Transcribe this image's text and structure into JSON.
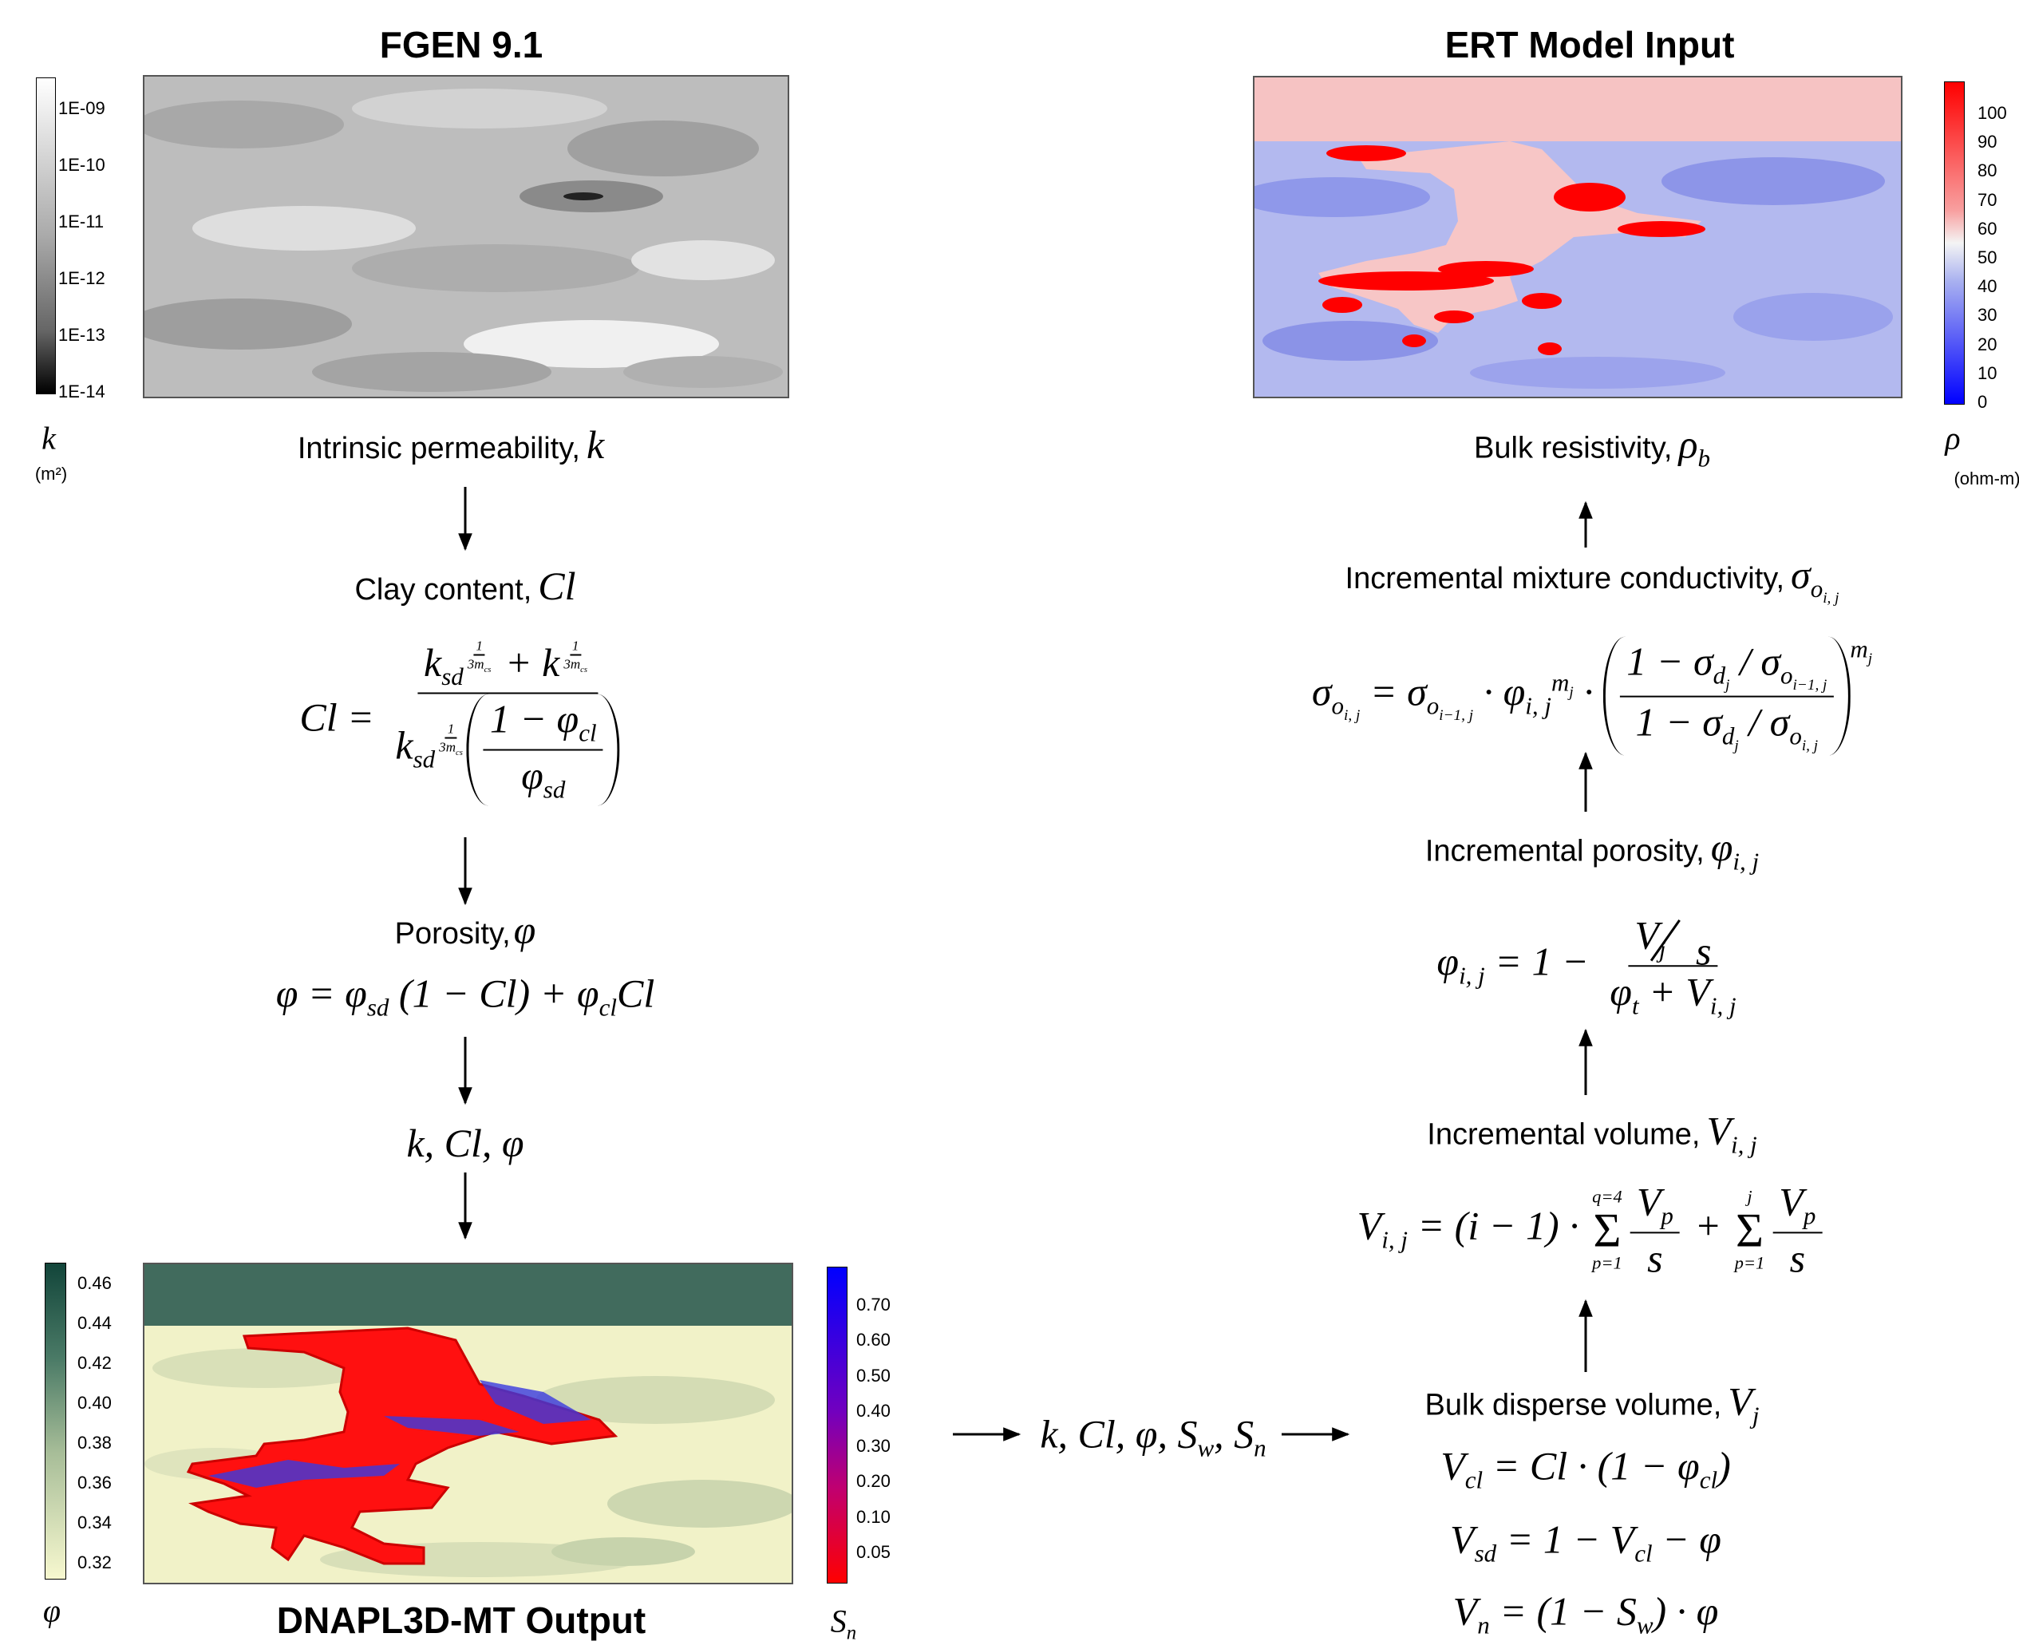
{
  "fgen": {
    "title": "FGEN 9.1",
    "colorbar_labels": [
      "1E-09",
      "1E-10",
      "1E-11",
      "1E-12",
      "1E-13",
      "1E-14"
    ],
    "symbol": "k",
    "unit": "(m²)",
    "caption": {
      "text": "Intrinsic permeability,",
      "symbol": "k"
    }
  },
  "clay": {
    "label": "Clay content,",
    "symbol": "Cl",
    "equation": {
      "lhs": "Cl =",
      "numerator": [
        "k",
        "sd",
        "1",
        "3m",
        "cs",
        "+ k",
        "1",
        "3m",
        "cs"
      ],
      "denominator": [
        "k",
        "sd",
        "1",
        "3m",
        "cs",
        "1 − φ",
        "cl",
        "φ",
        "sd"
      ]
    }
  },
  "porosity": {
    "label": "Porosity,",
    "symbol": "φ",
    "equation": [
      "φ = φ",
      "sd",
      "(1 − Cl) + φ",
      "cl",
      "Cl"
    ]
  },
  "variables": "k, Cl, φ",
  "dnapl": {
    "title": "DNAPL3D-MT Output",
    "porosity_labels": [
      "0.46",
      "0.44",
      "0.42",
      "0.40",
      "0.38",
      "0.36",
      "0.34",
      "0.32"
    ],
    "porosity_symbol": "φ",
    "saturation_labels": [
      "0.70",
      "0.60",
      "0.50",
      "0.40",
      "0.30",
      "0.20",
      "0.10",
      "0.05"
    ],
    "saturation_symbol": [
      "S",
      "n"
    ]
  },
  "transfer": [
    "k, Cl, φ, S",
    "w",
    ", S",
    "n"
  ],
  "bulk_disperse": {
    "label": "Bulk disperse volume,",
    "symbol": [
      "V",
      "j"
    ],
    "equations": [
      [
        "V",
        "cl",
        "= Cl · (1 − φ",
        "cl",
        ")"
      ],
      [
        "V",
        "sd",
        "= 1 − V",
        "cl",
        "− φ"
      ],
      [
        "V",
        "n",
        "= (1 − S",
        "w",
        ") · φ"
      ]
    ]
  },
  "incremental_volume": {
    "label": "Incremental volume,",
    "symbol": [
      "V",
      "i, j"
    ],
    "equation": {
      "lhs": [
        "V",
        "i, j",
        "= (i − 1) ·"
      ],
      "sum1": {
        "symbol": "Σ",
        "upper": "q=4",
        "lower": "p=1",
        "numerator": [
          "V",
          "p"
        ],
        "denominator": "s"
      },
      "plus": "+",
      "sum2": {
        "symbol": "Σ",
        "upper": "j",
        "lower": "p=1",
        "numerator": [
          "V",
          "p"
        ],
        "denominator": "s"
      }
    }
  },
  "incremental_porosity": {
    "label": "Incremental porosity,",
    "symbol": [
      "φ",
      "i, j"
    ],
    "equation": {
      "lhs": [
        "φ",
        "i, j",
        "= 1 −"
      ],
      "numerator": [
        "V",
        "j",
        "s"
      ],
      "denominator": [
        "φ",
        "t",
        "+ V",
        "i, j"
      ]
    }
  },
  "mixture_conductivity": {
    "label": "Incremental mixture conductivity,",
    "symbol": [
      "σ",
      "o",
      "i, j"
    ],
    "equation": {
      "lhs": [
        "σ",
        "o",
        "i, j",
        "= σ",
        "o",
        "i−1, j",
        "· φ",
        "i, j",
        "m",
        "j",
        "·"
      ],
      "numerator": [
        "1 − σ",
        "d",
        "j",
        "σ",
        "o",
        "i−1, j"
      ],
      "denominator": [
        "1 − σ",
        "d",
        "j",
        "σ",
        "o",
        "i, j"
      ],
      "exponent": [
        "m",
        "j"
      ]
    }
  },
  "ert": {
    "title": "ERT Model Input",
    "colorbar_labels": [
      100,
      90,
      80,
      70,
      60,
      50,
      40,
      30,
      20,
      10,
      0
    ],
    "symbol": "ρ",
    "unit": "(ohm-m)",
    "caption": {
      "text": "Bulk resistivity,",
      "symbol": [
        "ρ",
        "b"
      ]
    }
  }
}
